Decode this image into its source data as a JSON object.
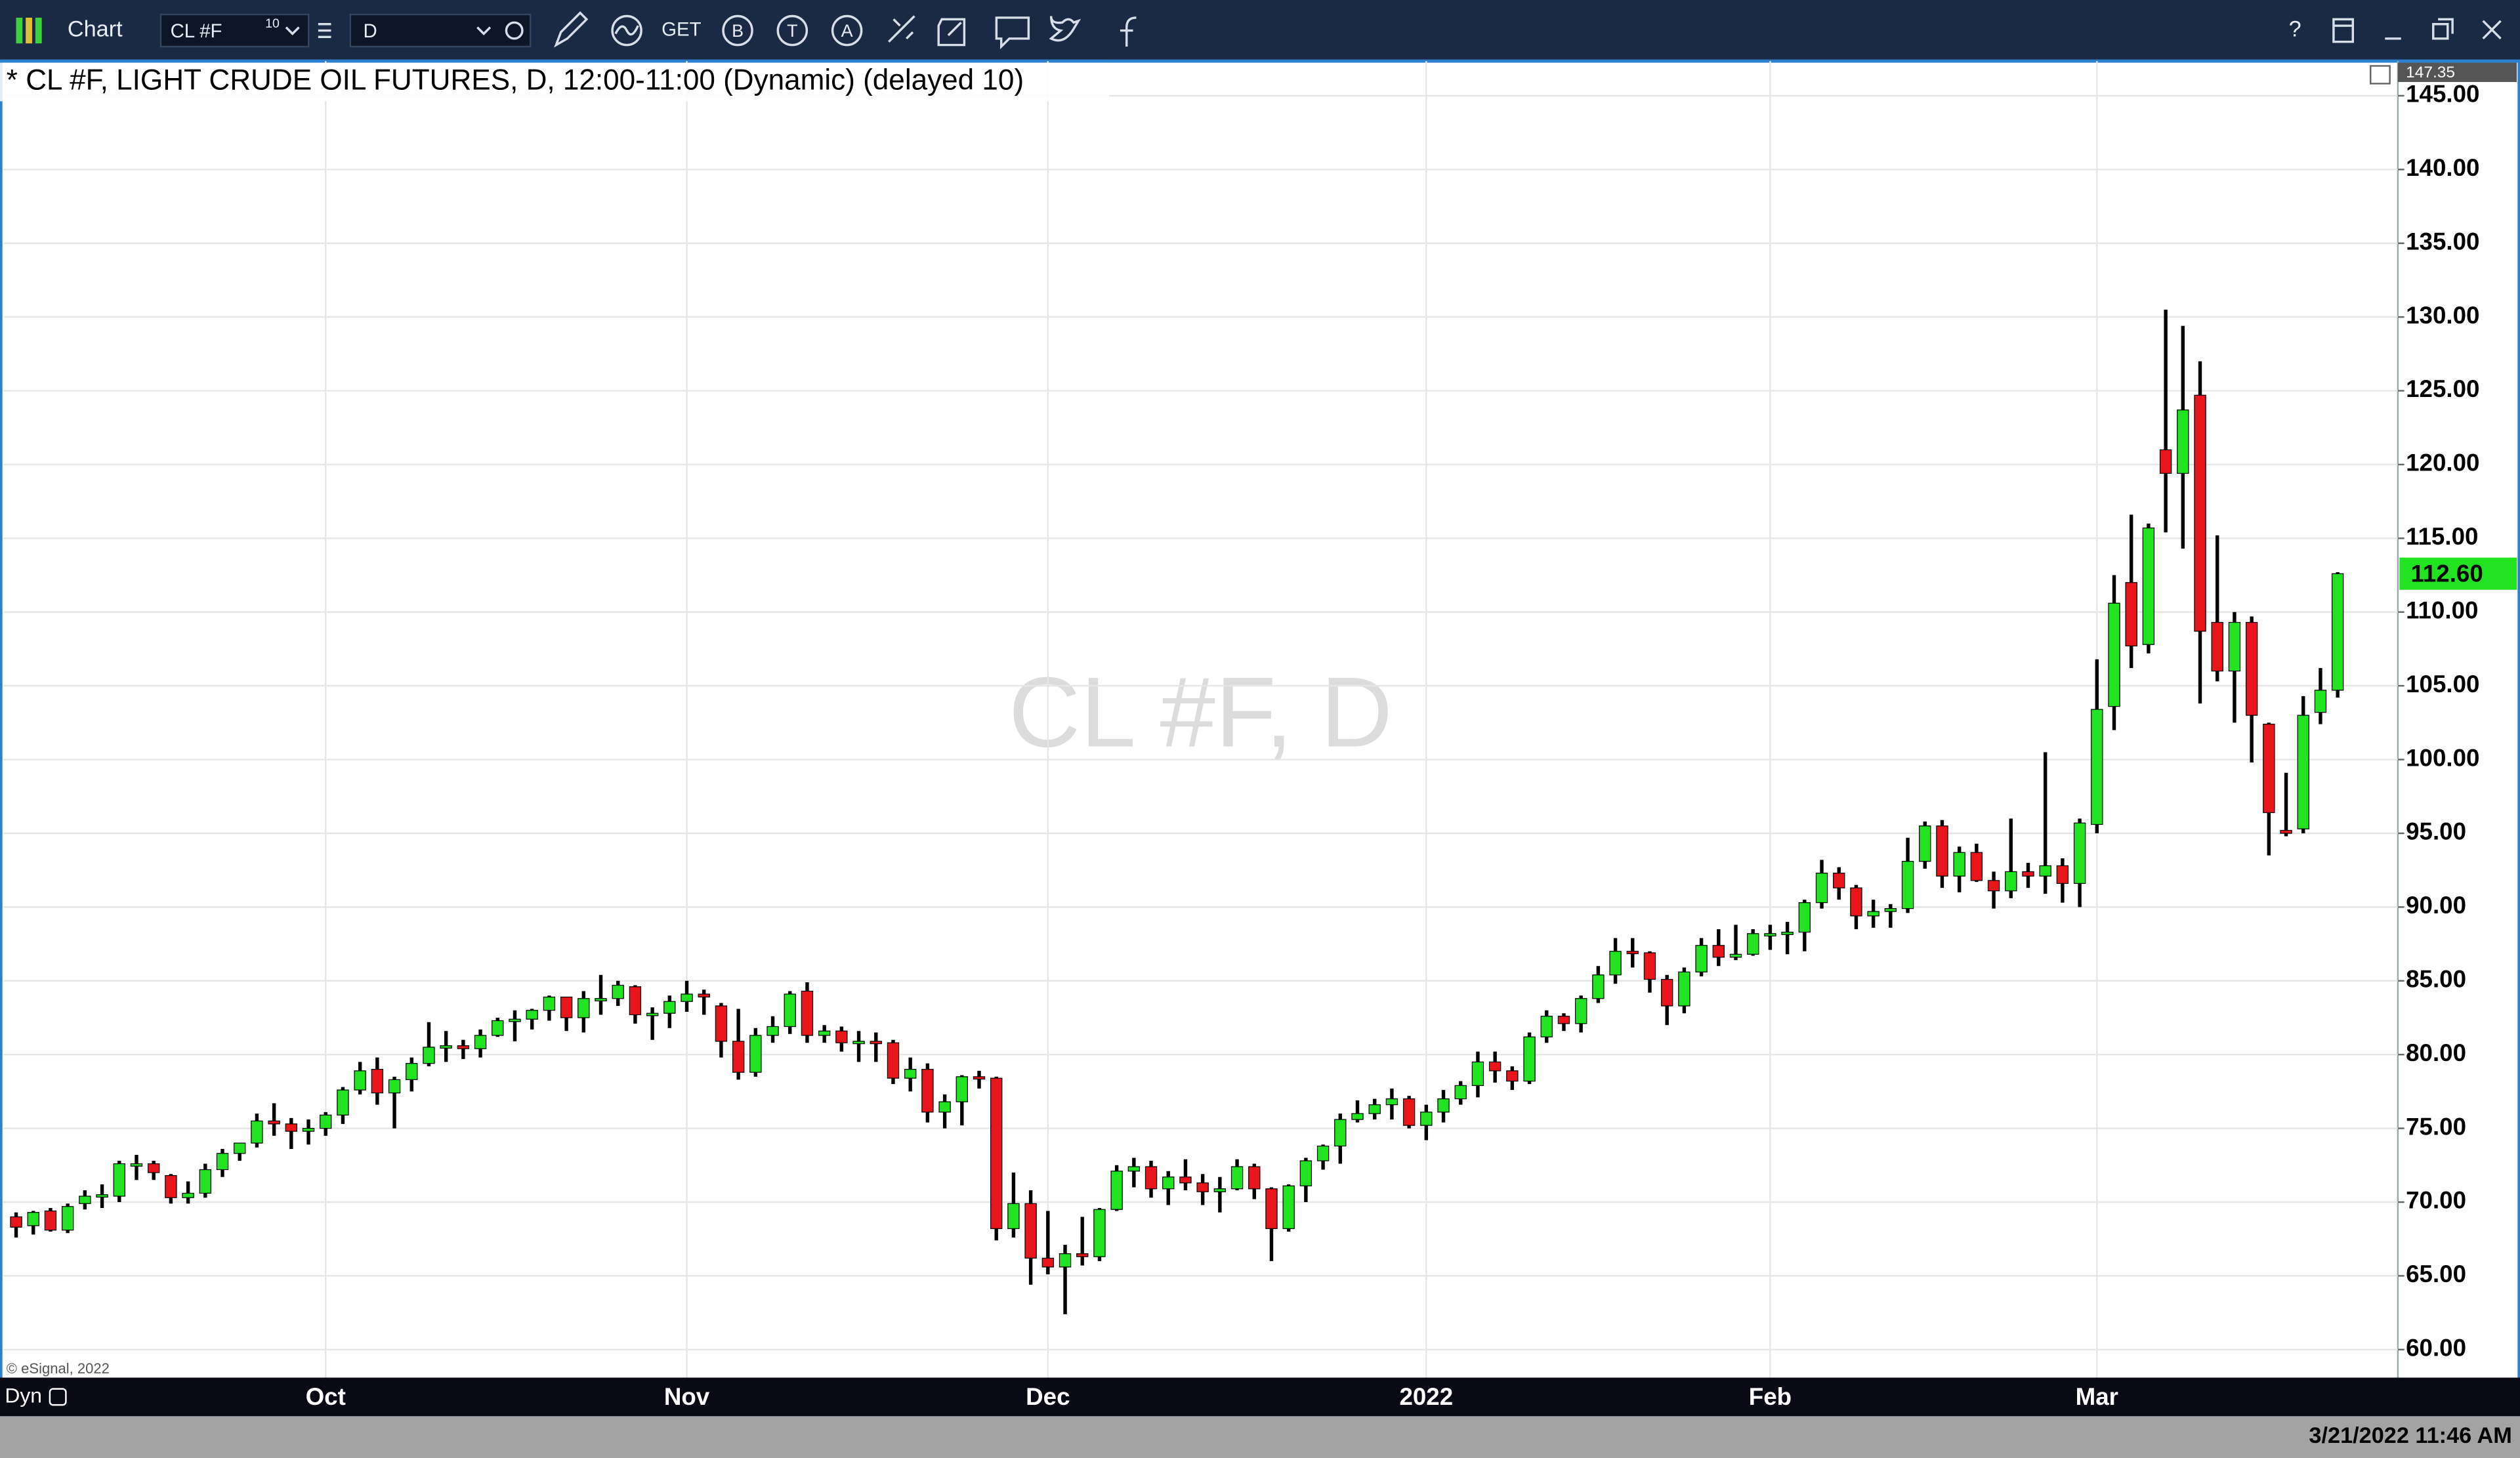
{
  "toolbar": {
    "app": "Chart",
    "symbol": "CL #F",
    "symbol_badge": "10",
    "interval": "D",
    "tools": [
      "GET",
      "B",
      "T",
      "A"
    ],
    "help": "?"
  },
  "chart_data": {
    "type": "candlestick",
    "title": "* CL #F, LIGHT CRUDE OIL FUTURES, D, 12:00-11:00 (Dynamic) (delayed 10)",
    "watermark": "CL #F, D",
    "copyright": "© eSignal, 2022",
    "mode": "Dyn",
    "timestamp": "3/21/2022 11:46 AM",
    "last_value_label": "112.60",
    "up_color": "#22e322",
    "down_color": "#e8151b",
    "wick_color": "#000000",
    "grid": true,
    "xlim": [
      -0.75,
      138.5
    ],
    "xticks": [
      {
        "value": 18,
        "label": "Oct"
      },
      {
        "value": 39,
        "label": "Nov"
      },
      {
        "value": 60,
        "label": "Dec"
      },
      {
        "value": 82,
        "label": "2022"
      },
      {
        "value": 102,
        "label": "Feb"
      },
      {
        "value": 121,
        "label": "Mar"
      }
    ],
    "ylim": [
      58.1,
      147.35
    ],
    "yticks": [
      {
        "value": 60,
        "label": "60.00"
      },
      {
        "value": 65,
        "label": "65.00"
      },
      {
        "value": 70,
        "label": "70.00"
      },
      {
        "value": 75,
        "label": "75.00"
      },
      {
        "value": 80,
        "label": "80.00"
      },
      {
        "value": 85,
        "label": "85.00"
      },
      {
        "value": 90,
        "label": "90.00"
      },
      {
        "value": 95,
        "label": "95.00"
      },
      {
        "value": 100,
        "label": "100.00"
      },
      {
        "value": 105,
        "label": "105.00"
      },
      {
        "value": 110,
        "label": "110.00"
      },
      {
        "value": 115,
        "label": "115.00"
      },
      {
        "value": 120,
        "label": "120.00"
      },
      {
        "value": 125,
        "label": "125.00"
      },
      {
        "value": 130,
        "label": "130.00"
      },
      {
        "value": 135,
        "label": "135.00"
      },
      {
        "value": 140,
        "label": "140.00"
      },
      {
        "value": 145,
        "label": "145.00"
      }
    ],
    "open": [
      69.0,
      68.4,
      69.4,
      68.1,
      69.9,
      70.5,
      70.4,
      72.6,
      72.6,
      71.8,
      70.3,
      70.6,
      72.2,
      73.3,
      74.0,
      75.5,
      75.3,
      74.8,
      75.0,
      75.9,
      77.6,
      79.0,
      77.4,
      78.3,
      79.4,
      80.5,
      80.6,
      80.4,
      81.3,
      82.3,
      82.4,
      83.0,
      83.9,
      82.5,
      83.8,
      83.8,
      84.6,
      82.7,
      82.8,
      83.6,
      84.1,
      83.3,
      80.9,
      78.8,
      81.3,
      81.9,
      84.3,
      81.3,
      81.6,
      80.8,
      80.9,
      80.8,
      78.4,
      79.0,
      76.1,
      76.8,
      78.5,
      78.4,
      68.2,
      69.9,
      66.2,
      65.6,
      66.5,
      66.3,
      69.5,
      72.1,
      72.4,
      70.9,
      71.7,
      71.3,
      70.7,
      70.9,
      72.4,
      70.9,
      68.2,
      71.1,
      72.8,
      73.8,
      75.6,
      76.0,
      76.6,
      77.0,
      75.2,
      76.1,
      77.0,
      77.9,
      79.5,
      78.9,
      78.2,
      81.2,
      82.6,
      82.1,
      83.8,
      85.4,
      87.0,
      86.9,
      85.1,
      83.3,
      85.6,
      87.4,
      86.6,
      86.8,
      88.2,
      88.2,
      88.3,
      90.3,
      92.3,
      91.3,
      89.4,
      89.7,
      89.9,
      93.1,
      95.5,
      92.1,
      93.7,
      91.8,
      91.1,
      92.4,
      92.1,
      92.8,
      91.6,
      95.6,
      103.6,
      112.0,
      107.8,
      121.0,
      119.4,
      124.7,
      109.3,
      106.0,
      109.3,
      102.4,
      95.2,
      95.3,
      103.2,
      104.7
    ],
    "high": [
      69.3,
      69.4,
      69.6,
      69.9,
      70.8,
      71.2,
      72.8,
      73.2,
      72.8,
      71.9,
      71.4,
      72.6,
      73.6,
      74.0,
      76.0,
      76.7,
      75.7,
      75.6,
      76.1,
      77.8,
      79.5,
      79.8,
      78.5,
      79.8,
      82.2,
      81.6,
      81.0,
      81.7,
      82.5,
      83.0,
      83.1,
      84.0,
      83.9,
      84.3,
      85.4,
      85.0,
      84.7,
      83.2,
      84.0,
      85.0,
      84.4,
      83.5,
      83.1,
      81.8,
      82.6,
      84.3,
      84.9,
      82.0,
      81.9,
      81.6,
      81.5,
      81.0,
      79.8,
      79.4,
      77.3,
      78.6,
      78.9,
      78.5,
      72.0,
      70.8,
      69.4,
      67.1,
      69.0,
      69.6,
      72.5,
      73.0,
      72.8,
      72.1,
      72.9,
      71.9,
      71.7,
      72.9,
      72.6,
      71.0,
      71.2,
      73.0,
      73.9,
      76.0,
      76.9,
      77.0,
      77.7,
      77.2,
      76.6,
      77.6,
      78.2,
      80.2,
      80.2,
      79.2,
      81.5,
      83.0,
      82.8,
      84.0,
      86.0,
      87.9,
      87.9,
      87.0,
      85.4,
      85.9,
      87.9,
      88.5,
      88.8,
      88.5,
      88.8,
      89.0,
      90.5,
      93.2,
      92.7,
      91.5,
      90.5,
      90.2,
      94.7,
      95.8,
      95.9,
      94.1,
      94.3,
      92.4,
      96.0,
      93.0,
      100.5,
      93.3,
      96.0,
      106.8,
      112.5,
      116.6,
      116.0,
      130.5,
      129.4,
      127.0,
      115.2,
      110.0,
      109.7,
      102.5,
      99.1,
      104.3,
      106.2,
      112.7
    ],
    "low": [
      67.6,
      67.8,
      68.0,
      67.9,
      69.5,
      69.6,
      70.0,
      71.5,
      71.5,
      69.9,
      69.9,
      70.3,
      71.7,
      72.8,
      73.7,
      74.5,
      73.6,
      73.9,
      74.5,
      75.3,
      77.3,
      76.6,
      75.0,
      77.5,
      79.2,
      79.5,
      79.7,
      79.8,
      81.2,
      80.9,
      81.7,
      82.3,
      81.6,
      81.5,
      82.7,
      83.3,
      82.1,
      81.0,
      81.8,
      82.9,
      82.7,
      79.8,
      78.3,
      78.5,
      80.8,
      81.4,
      80.8,
      80.8,
      80.2,
      79.5,
      79.5,
      78.0,
      77.5,
      75.4,
      75.0,
      75.2,
      77.7,
      67.4,
      67.6,
      64.4,
      65.1,
      62.4,
      65.7,
      66.0,
      69.4,
      71.0,
      70.3,
      69.8,
      70.8,
      69.8,
      69.3,
      70.8,
      70.2,
      66.0,
      68.0,
      70.0,
      72.2,
      72.6,
      75.4,
      75.6,
      75.6,
      75.0,
      74.2,
      75.4,
      76.6,
      77.1,
      78.1,
      77.6,
      78.0,
      80.8,
      81.6,
      81.5,
      83.5,
      84.8,
      85.9,
      84.2,
      82.0,
      82.8,
      85.3,
      86.0,
      86.4,
      86.7,
      87.1,
      86.8,
      87.0,
      89.9,
      90.5,
      88.5,
      88.6,
      88.6,
      89.6,
      92.6,
      91.3,
      91.0,
      91.7,
      89.9,
      90.6,
      91.3,
      90.9,
      90.3,
      90.0,
      95.0,
      102.0,
      106.2,
      107.2,
      115.4,
      114.3,
      103.8,
      105.3,
      102.5,
      99.8,
      93.5,
      94.8,
      95.0,
      102.4,
      104.2
    ],
    "close": [
      68.3,
      69.3,
      68.1,
      69.7,
      70.4,
      70.5,
      72.6,
      72.6,
      72.0,
      70.3,
      70.6,
      72.2,
      73.3,
      74.0,
      75.5,
      75.3,
      74.8,
      75.0,
      75.9,
      77.6,
      78.9,
      77.4,
      78.3,
      79.4,
      80.5,
      80.6,
      80.4,
      81.3,
      82.3,
      82.4,
      83.0,
      83.9,
      82.5,
      83.8,
      83.8,
      84.7,
      82.7,
      82.8,
      83.6,
      84.1,
      83.9,
      80.9,
      78.8,
      81.3,
      81.9,
      84.1,
      81.3,
      81.6,
      80.8,
      80.9,
      80.8,
      78.4,
      79.0,
      76.1,
      76.8,
      78.5,
      78.4,
      68.2,
      69.9,
      66.2,
      65.6,
      66.5,
      66.3,
      69.5,
      72.1,
      72.4,
      70.9,
      71.7,
      71.3,
      70.7,
      70.9,
      72.4,
      70.9,
      68.2,
      71.1,
      72.8,
      73.8,
      75.6,
      76.0,
      76.6,
      77.0,
      75.2,
      76.1,
      77.0,
      77.9,
      79.5,
      78.9,
      78.2,
      81.2,
      82.6,
      82.1,
      83.8,
      85.4,
      87.0,
      86.9,
      85.1,
      83.3,
      85.6,
      87.4,
      86.6,
      86.8,
      88.2,
      88.2,
      88.3,
      90.3,
      92.3,
      91.3,
      89.4,
      89.7,
      89.9,
      93.1,
      95.5,
      92.1,
      93.7,
      91.8,
      91.1,
      92.4,
      92.1,
      92.8,
      91.6,
      95.7,
      103.4,
      110.6,
      107.7,
      115.7,
      119.4,
      123.7,
      108.7,
      106.0,
      109.3,
      103.0,
      96.4,
      95.0,
      103.0,
      104.7,
      112.6
    ]
  }
}
